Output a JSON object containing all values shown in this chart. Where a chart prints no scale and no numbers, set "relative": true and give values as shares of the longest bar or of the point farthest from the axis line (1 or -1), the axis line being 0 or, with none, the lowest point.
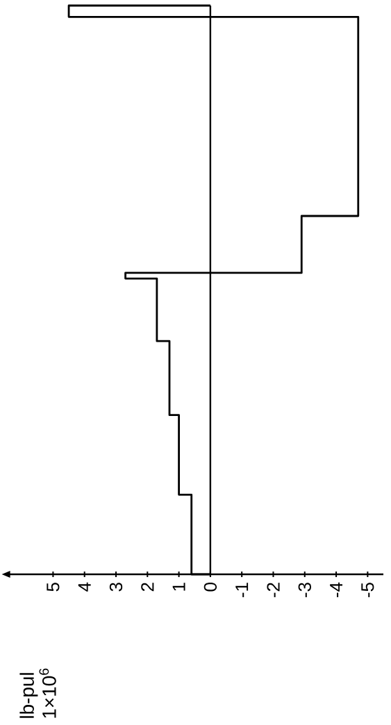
{
  "chart_data": {
    "type": "line",
    "annotations": [
      "lb-pul 1×10$^{6}$"
    ],
    "relative": true,
    "x": [
      0,
      0.6,
      0.6,
      1.0,
      1.0,
      1.3,
      1.3,
      1.7,
      1.7,
      2.7,
      2.7,
      -2.9,
      -2.9,
      -4.7,
      -4.7,
      4.5,
      4.5,
      0
    ],
    "values": [
      0,
      0,
      0.14,
      0.14,
      0.28,
      0.28,
      0.41,
      0.41,
      0.52,
      0.52,
      0.53,
      0.53,
      0.63,
      0.63,
      0.98,
      0.98,
      1.0,
      1.0
    ],
    "color": "#000000",
    "xlim": [
      6.4,
      -5.5
    ],
    "xticks": [
      5,
      4,
      3,
      2,
      1,
      0,
      -1,
      -2,
      -3,
      -4,
      -5
    ],
    "tick_labels": "x",
    "marker": "none",
    "line_style": "solid"
  }
}
